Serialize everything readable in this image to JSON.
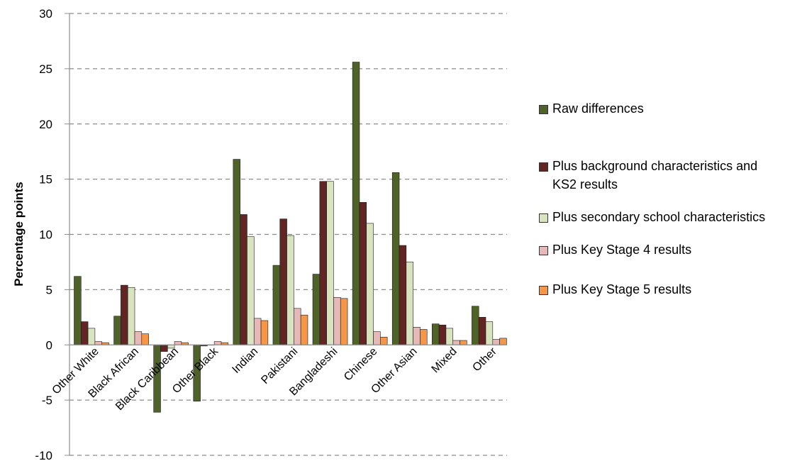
{
  "chart_data": {
    "type": "bar",
    "ylabel": "Percentage points",
    "xlabel": "",
    "ylim": [
      -10,
      30
    ],
    "yticks": [
      -10,
      -5,
      0,
      5,
      10,
      15,
      20,
      25,
      30
    ],
    "grid": "horizontal-dashed",
    "legend_placement": "right",
    "categories": [
      "Other White",
      "Black African",
      "Black Caribbean",
      "Other Black",
      "Indian",
      "Pakistani",
      "Bangladeshi",
      "Chinese",
      "Other Asian",
      "Mixed",
      "Other"
    ],
    "series": [
      {
        "name": "Raw differences",
        "color": "#4f6228",
        "values": [
          6.2,
          2.6,
          -6.1,
          -5.1,
          16.8,
          7.2,
          6.4,
          25.6,
          15.6,
          1.9,
          3.5
        ]
      },
      {
        "name": "Plus background characteristics and KS2 results",
        "color": "#632523",
        "values": [
          2.1,
          5.4,
          -0.6,
          -0.1,
          11.8,
          11.4,
          14.8,
          12.9,
          9.0,
          1.8,
          2.5
        ]
      },
      {
        "name": "Plus secondary school characteristics",
        "color": "#d7e4bd",
        "values": [
          1.5,
          5.2,
          -0.3,
          0.0,
          9.8,
          9.9,
          14.8,
          11.0,
          7.5,
          1.5,
          2.1
        ]
      },
      {
        "name": "Plus Key Stage 4 results",
        "color": "#e6b9b8",
        "values": [
          0.3,
          1.2,
          0.3,
          0.3,
          2.4,
          3.3,
          4.3,
          1.2,
          1.6,
          0.4,
          0.5
        ]
      },
      {
        "name": "Plus Key Stage 5 results",
        "color": "#f79646",
        "values": [
          0.2,
          1.0,
          0.2,
          0.2,
          2.2,
          2.7,
          4.2,
          0.7,
          1.4,
          0.4,
          0.6
        ]
      }
    ]
  }
}
